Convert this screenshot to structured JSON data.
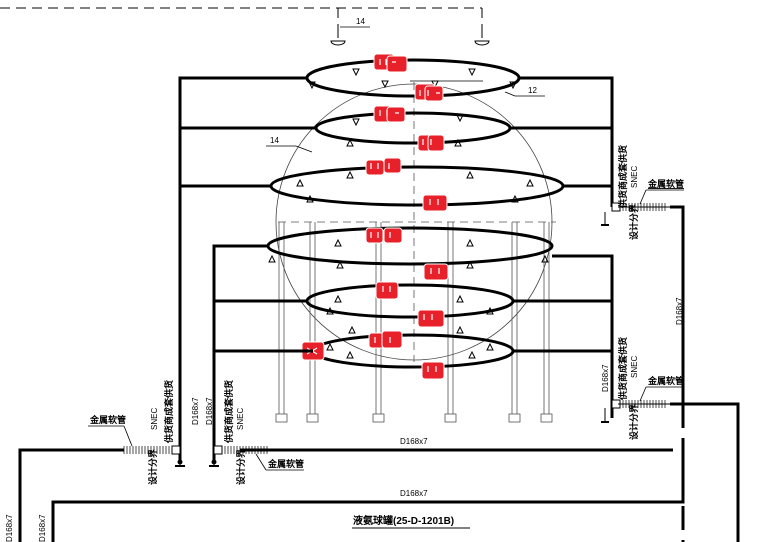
{
  "drawing": {
    "callouts": {
      "top": "14",
      "left": "14",
      "right": "12"
    },
    "pipe_spec": "D168x7",
    "supplier_note": "供货商成套供货",
    "snec": "SNEC",
    "design_boundary": "设计分界",
    "metal_hose": "金属软管",
    "vessel_title": "液氨球罐(25-D-1201B)",
    "highlight_color": "#e8202a",
    "line_color": "#000000"
  }
}
